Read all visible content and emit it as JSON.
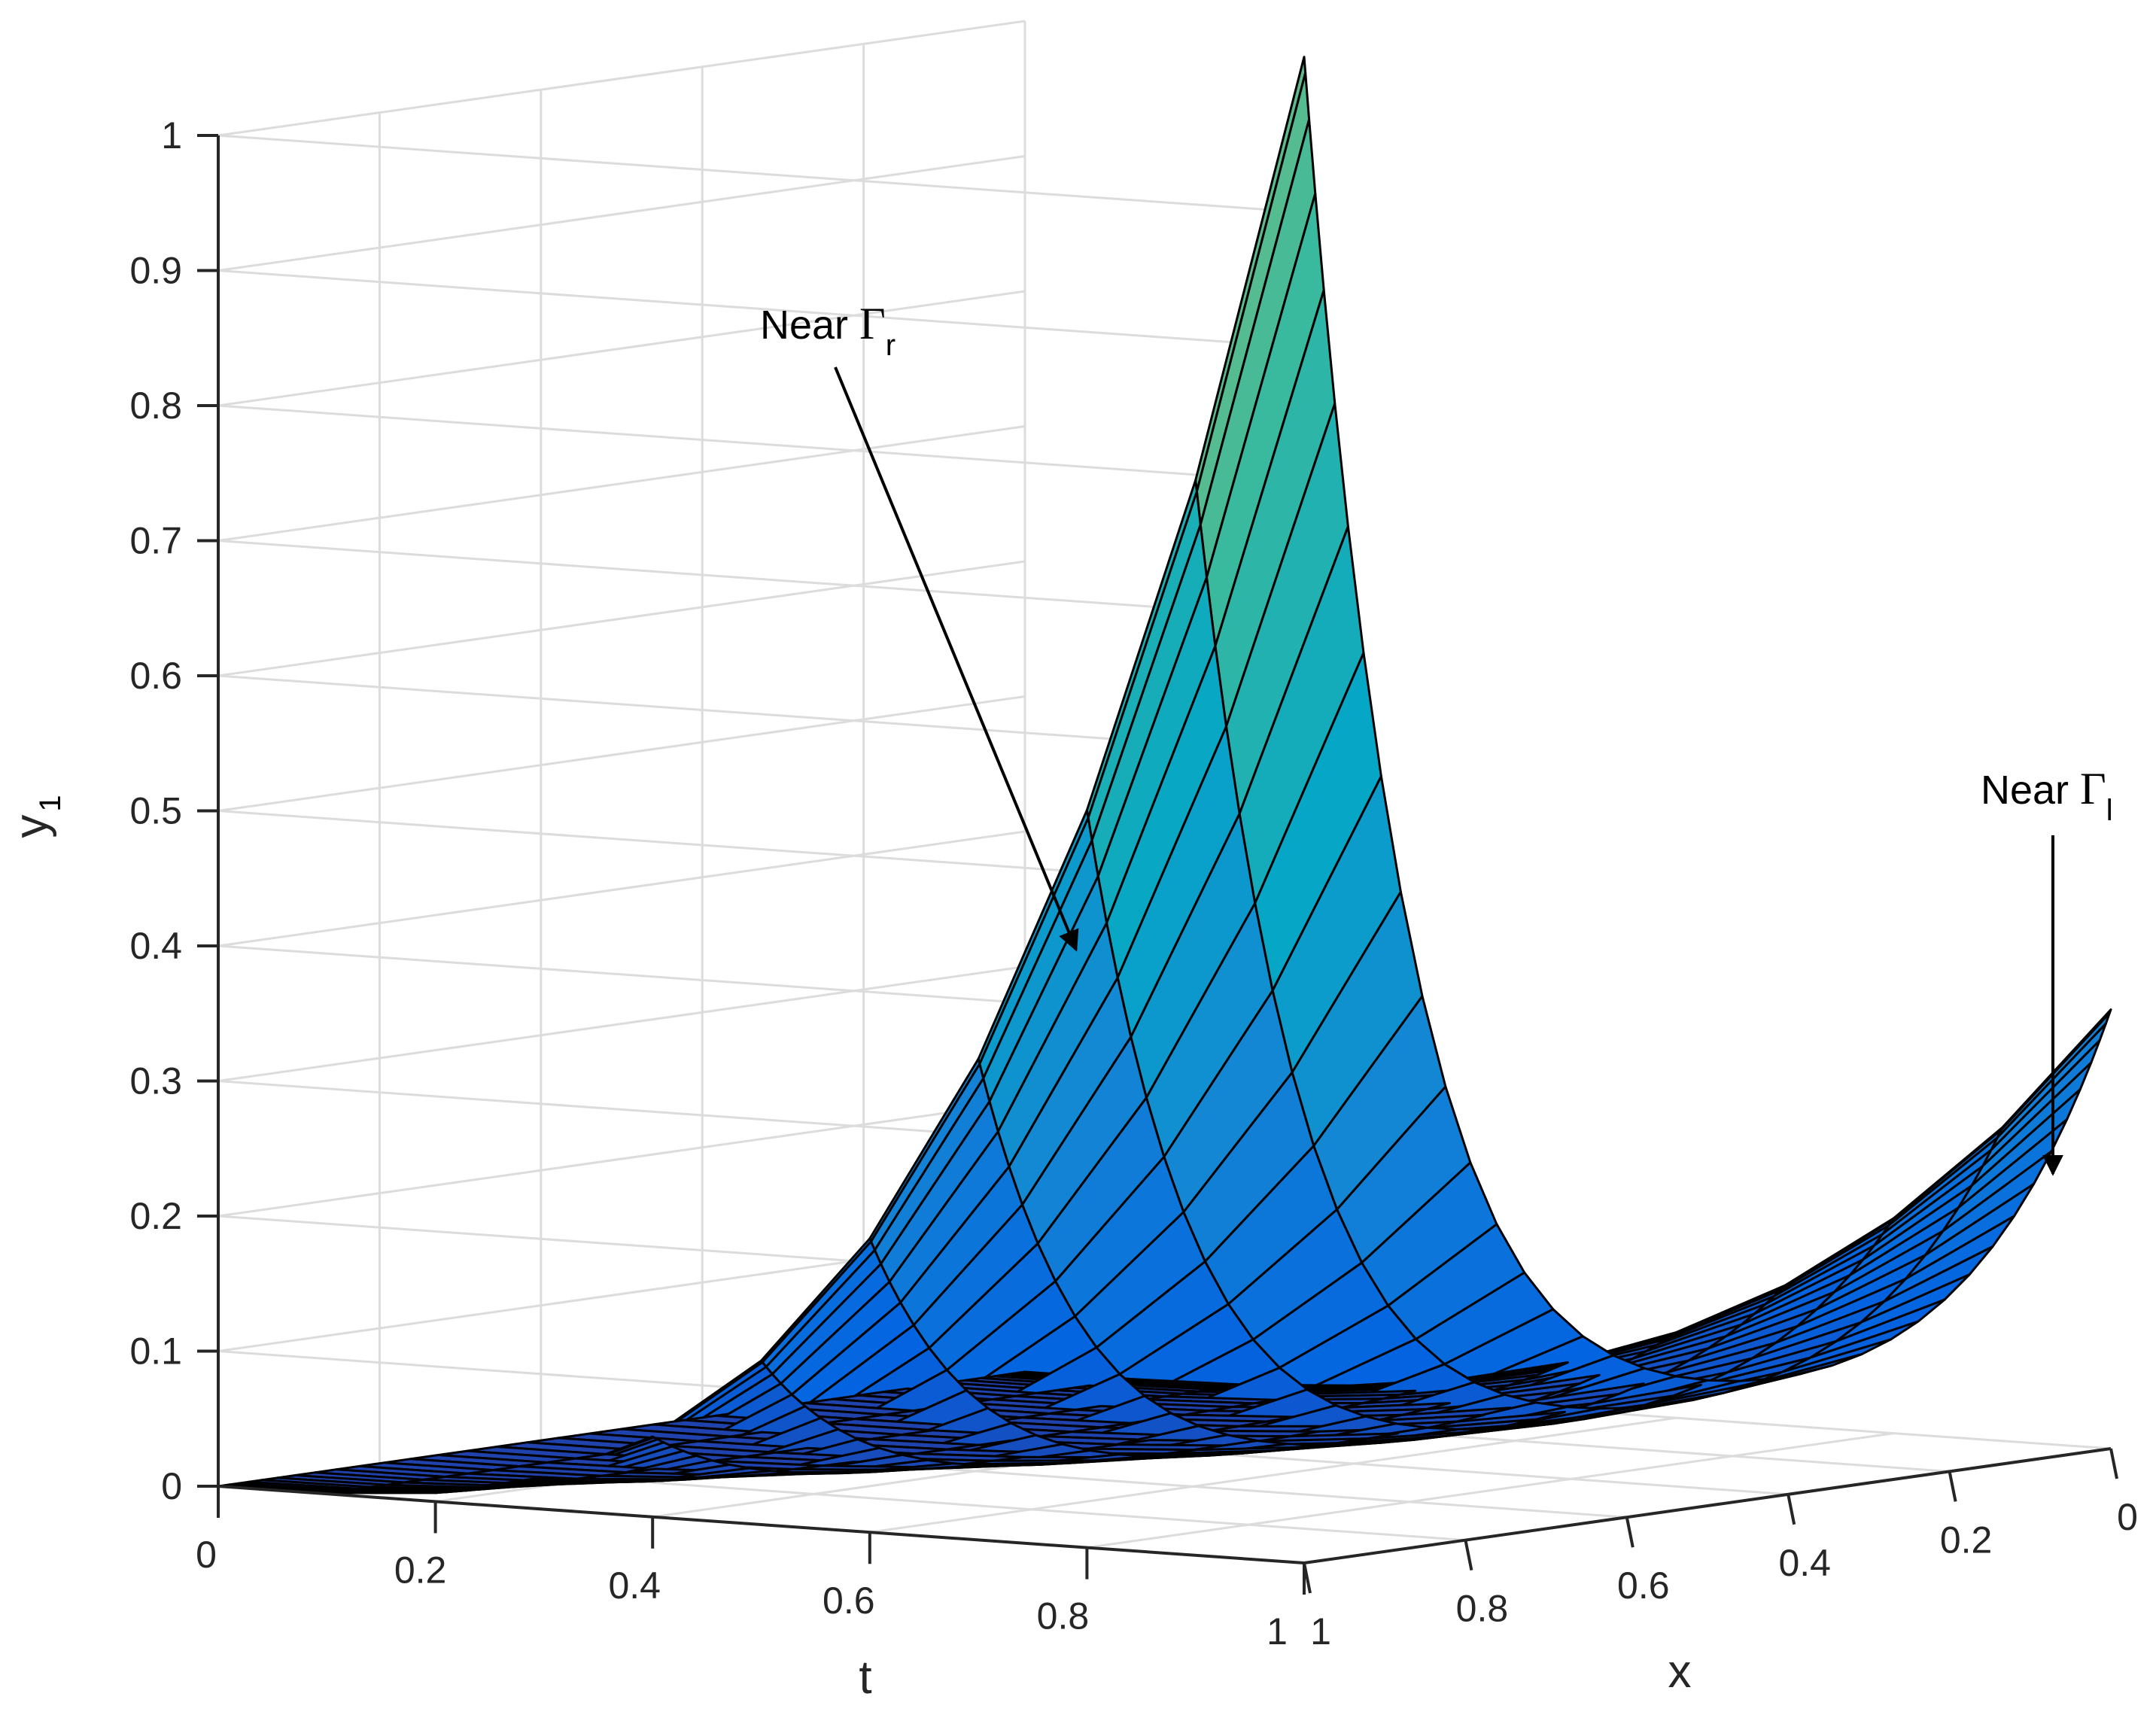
{
  "chart_data": {
    "type": "surface",
    "title": "",
    "axes": {
      "t": {
        "label": "t",
        "range": [
          0,
          1
        ],
        "ticks": [
          "0",
          "0.2",
          "0.4",
          "0.6",
          "0.8",
          "1"
        ]
      },
      "x": {
        "label": "x",
        "range": [
          0,
          1
        ],
        "ticks": [
          "0",
          "0.2",
          "0.4",
          "0.6",
          "0.8",
          "1"
        ]
      },
      "y": {
        "label": "y",
        "label_subscript": "1",
        "range": [
          0,
          1
        ],
        "ticks": [
          "0",
          "0.1",
          "0.2",
          "0.3",
          "0.4",
          "0.5",
          "0.6",
          "0.7",
          "0.8",
          "0.9",
          "1"
        ]
      }
    },
    "grid": true,
    "colormap": "parula",
    "surface_description": "y1 grows with t; peaks at boundary x=1 (approx 0.94 at t=1) and x=0 (approx 0.27 at t=1), with a minimum in the interior",
    "peak_near_x1": 0.94,
    "peak_near_x0": 0.27,
    "annotations": [
      {
        "text": "Near ",
        "symbol": "Γ",
        "subscript": "r"
      },
      {
        "text": "Near ",
        "symbol": "Γ",
        "subscript": "l"
      }
    ]
  }
}
